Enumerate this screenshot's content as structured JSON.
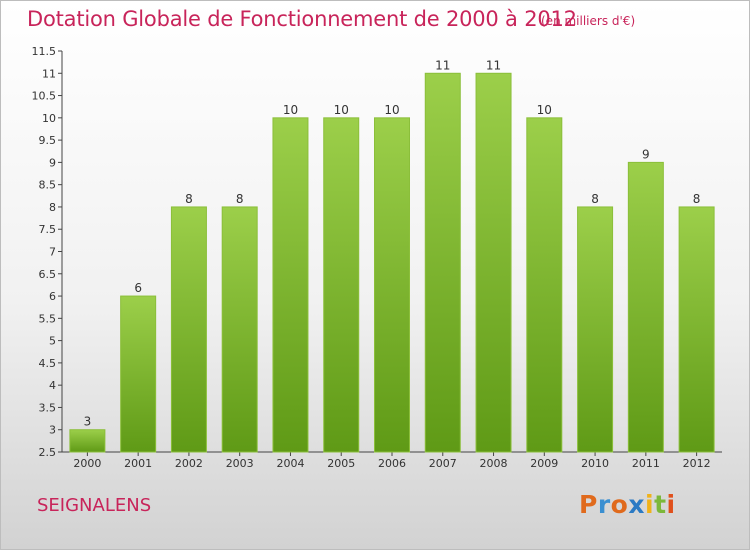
{
  "title": "Dotation Globale de Fonctionnement de 2000 à 2012",
  "subtitle": "(en milliers d'€)",
  "commune": "SEIGNALENS",
  "logo": {
    "letters": [
      "P",
      "r",
      "o",
      "x",
      "i",
      "t",
      "i"
    ],
    "colors": [
      "#e06a1c",
      "#3a8fd1",
      "#e06a1c",
      "#2b7ac4",
      "#f0b21a",
      "#7cb83a",
      "#e0501c"
    ]
  },
  "colors": {
    "bar_light": "#9ccf4a",
    "bar_dark": "#5f9a16",
    "accent": "#c8245a"
  },
  "chart_data": {
    "type": "bar",
    "title": "Dotation Globale de Fonctionnement de 2000 à 2012",
    "subtitle": "(en milliers d'€)",
    "categories": [
      "2000",
      "2001",
      "2002",
      "2003",
      "2004",
      "2005",
      "2006",
      "2007",
      "2008",
      "2009",
      "2010",
      "2011",
      "2012"
    ],
    "values": [
      3,
      6,
      8,
      8,
      10,
      10,
      10,
      11,
      11,
      10,
      8,
      9,
      8
    ],
    "ylim": [
      2.5,
      11.5
    ],
    "yticks": [
      "2.5",
      "3",
      "3.5",
      "4",
      "4.5",
      "5",
      "5.5",
      "6",
      "6.5",
      "7",
      "7.5",
      "8",
      "8.5",
      "9",
      "9.5",
      "10",
      "10.5",
      "11",
      "11.5"
    ],
    "grid": false
  }
}
